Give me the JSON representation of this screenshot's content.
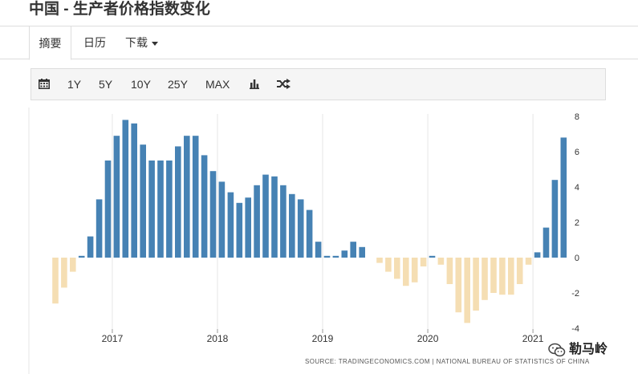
{
  "page": {
    "title": "中国 - 生产者价格指数变化"
  },
  "tabs": [
    {
      "label": "摘要",
      "active": true
    },
    {
      "label": "日历",
      "active": false
    },
    {
      "label": "下载",
      "active": false,
      "has_dropdown": true
    }
  ],
  "toolbar": {
    "calendar_icon": "calendar-icon",
    "ranges": [
      "1Y",
      "5Y",
      "10Y",
      "25Y",
      "MAX"
    ],
    "bar_icon": "bar-chart-icon",
    "shuffle_icon": "shuffle-icon"
  },
  "chart_data": {
    "type": "bar",
    "title": "",
    "xlabel": "",
    "ylabel": "",
    "ylim": [
      -4,
      8
    ],
    "yticks": [
      8,
      6,
      4,
      2,
      0,
      -2,
      -4
    ],
    "grid": "vertical lines at year starts",
    "x_start": "2016-06",
    "xticks": [
      "2017",
      "2018",
      "2019",
      "2020",
      "2021"
    ],
    "positive_color": "#4682b4",
    "negative_color": "#f5deb3",
    "categories": [
      "2016-06",
      "2016-07",
      "2016-08",
      "2016-09",
      "2016-10",
      "2016-11",
      "2016-12",
      "2017-01",
      "2017-02",
      "2017-03",
      "2017-04",
      "2017-05",
      "2017-06",
      "2017-07",
      "2017-08",
      "2017-09",
      "2017-10",
      "2017-11",
      "2017-12",
      "2018-01",
      "2018-02",
      "2018-03",
      "2018-04",
      "2018-05",
      "2018-06",
      "2018-07",
      "2018-08",
      "2018-09",
      "2018-10",
      "2018-11",
      "2018-12",
      "2019-01",
      "2019-02",
      "2019-03",
      "2019-04",
      "2019-05",
      "2019-06",
      "2019-07",
      "2019-08",
      "2019-09",
      "2019-10",
      "2019-11",
      "2019-12",
      "2020-01",
      "2020-02",
      "2020-03",
      "2020-04",
      "2020-05",
      "2020-06",
      "2020-07",
      "2020-08",
      "2020-09",
      "2020-10",
      "2020-11",
      "2020-12",
      "2021-01",
      "2021-02",
      "2021-03",
      "2021-04"
    ],
    "values": [
      -2.6,
      -1.7,
      -0.8,
      0.1,
      1.2,
      3.3,
      5.5,
      6.9,
      7.8,
      7.6,
      6.4,
      5.5,
      5.5,
      5.5,
      6.3,
      6.9,
      6.9,
      5.8,
      4.9,
      4.3,
      3.7,
      3.1,
      3.4,
      4.1,
      4.7,
      4.6,
      4.1,
      3.6,
      3.3,
      2.7,
      0.9,
      0.1,
      0.1,
      0.4,
      0.9,
      0.6,
      0.0,
      -0.3,
      -0.8,
      -1.2,
      -1.6,
      -1.4,
      -0.5,
      0.1,
      -0.4,
      -1.5,
      -3.1,
      -3.7,
      -3.0,
      -2.4,
      -2.0,
      -2.1,
      -2.1,
      -1.5,
      -0.4,
      0.3,
      1.7,
      4.4,
      6.8
    ],
    "source": "SOURCE: TRADINGECONOMICS.COM | NATIONAL BUREAU OF STATISTICS OF CHINA"
  },
  "watermark": {
    "text": "勒马岭",
    "icon": "wechat-icon"
  }
}
